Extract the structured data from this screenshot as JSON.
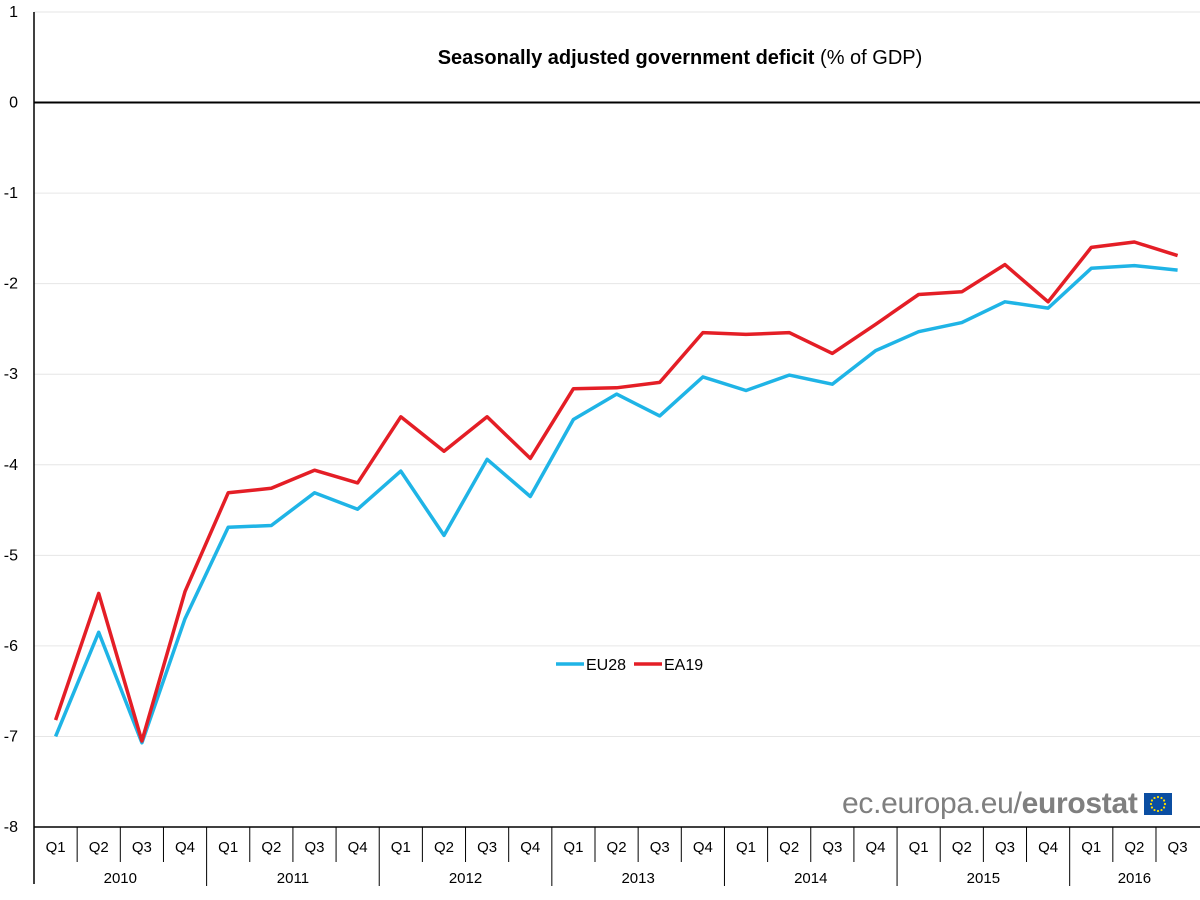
{
  "chart_data": {
    "type": "line",
    "title": {
      "bold": "Seasonally adjusted government deficit",
      "normal": "(% of GDP)"
    },
    "xlabel": "",
    "ylabel": "",
    "ylim": [
      -8,
      1
    ],
    "yticks": [
      1,
      0,
      -1,
      -2,
      -3,
      -4,
      -5,
      -6,
      -7,
      -8
    ],
    "grid": "horizontal",
    "legend_position": "center",
    "quarters": [
      "Q1",
      "Q2",
      "Q3",
      "Q4",
      "Q1",
      "Q2",
      "Q3",
      "Q4",
      "Q1",
      "Q2",
      "Q3",
      "Q4",
      "Q1",
      "Q2",
      "Q3",
      "Q4",
      "Q1",
      "Q2",
      "Q3",
      "Q4",
      "Q1",
      "Q2",
      "Q3",
      "Q4",
      "Q1",
      "Q2",
      "Q3"
    ],
    "years": [
      "2010",
      "2011",
      "2012",
      "2013",
      "2014",
      "2015",
      "2016"
    ],
    "series": [
      {
        "name": "EU28",
        "color": "#1fb4e6",
        "values": [
          -7.0,
          -5.85,
          -7.07,
          -5.7,
          -4.69,
          -4.67,
          -4.31,
          -4.49,
          -4.07,
          -4.78,
          -3.94,
          -4.35,
          -3.5,
          -3.22,
          -3.46,
          -3.03,
          -3.18,
          -3.01,
          -3.11,
          -2.74,
          -2.53,
          -2.43,
          -2.2,
          -2.27,
          -1.83,
          -1.8,
          -1.85
        ]
      },
      {
        "name": "EA19",
        "color": "#e41e26",
        "values": [
          -6.82,
          -5.42,
          -7.05,
          -5.4,
          -4.31,
          -4.26,
          -4.06,
          -4.2,
          -3.47,
          -3.85,
          -3.47,
          -3.93,
          -3.16,
          -3.15,
          -3.09,
          -2.54,
          -2.56,
          -2.54,
          -2.77,
          -2.45,
          -2.12,
          -2.09,
          -1.79,
          -2.2,
          -1.6,
          -1.54,
          -1.69
        ]
      }
    ]
  },
  "branding": {
    "url_text": "ec.europa.eu/",
    "name_text": "eurostat",
    "flag_icon": "eu-flag-icon"
  }
}
